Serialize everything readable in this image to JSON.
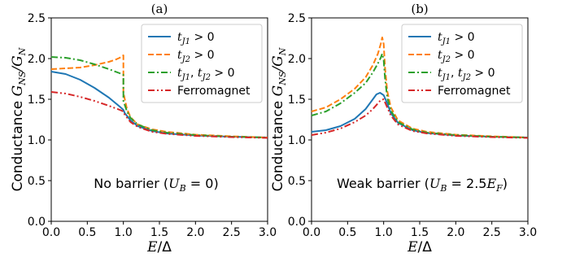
{
  "chart_data": [
    {
      "type": "line",
      "panel_label": "(a)",
      "xlabel": "E/Δ",
      "ylabel": "Conductance G_NS/G_N",
      "ylabel_text": "Conductance ",
      "ylabel_math": "G",
      "ylabel_sub1": "NS",
      "ylabel_slash": "/G",
      "ylabel_sub2": "N",
      "xlim": [
        0,
        3
      ],
      "ylim": [
        0,
        2.5
      ],
      "xticks": [
        "0.0",
        "0.5",
        "1.0",
        "1.5",
        "2.0",
        "2.5",
        "3.0"
      ],
      "yticks": [
        "0.0",
        "0.5",
        "1.0",
        "1.5",
        "2.0",
        "2.5"
      ],
      "annotation": "No barrier (U_B = 0)",
      "annotation_text": "No barrier (",
      "annotation_math": "U",
      "annotation_sub": "B",
      "annotation_rest": " = 0)",
      "legend_position": "top-right",
      "series": [
        {
          "name": "t_J1 > 0",
          "color": "#1f77b4",
          "dash": "solid",
          "x": [
            0,
            0.2,
            0.4,
            0.6,
            0.8,
            0.95,
            1.0,
            1.02,
            1.1,
            1.2,
            1.4,
            1.6,
            2.0,
            2.5,
            3.0
          ],
          "y": [
            1.84,
            1.81,
            1.74,
            1.64,
            1.52,
            1.41,
            1.37,
            1.33,
            1.24,
            1.17,
            1.11,
            1.08,
            1.055,
            1.04,
            1.03
          ]
        },
        {
          "name": "t_J2 > 0",
          "color": "#ff7f0e",
          "dash": "dashed",
          "x": [
            0,
            0.2,
            0.4,
            0.6,
            0.8,
            0.9,
            0.95,
            1.0,
            1.0,
            1.05,
            1.1,
            1.2,
            1.4,
            1.6,
            2.0,
            2.5,
            3.0
          ],
          "y": [
            1.87,
            1.88,
            1.89,
            1.92,
            1.96,
            1.99,
            2.01,
            2.04,
            1.58,
            1.38,
            1.28,
            1.19,
            1.13,
            1.1,
            1.065,
            1.045,
            1.03
          ]
        },
        {
          "name": "t_J1, t_J2 > 0",
          "color": "#2ca02c",
          "dash": "dashdot",
          "x": [
            0,
            0.2,
            0.4,
            0.6,
            0.8,
            0.95,
            1.0,
            1.0,
            1.05,
            1.1,
            1.2,
            1.4,
            1.6,
            2.0,
            2.5,
            3.0
          ],
          "y": [
            2.02,
            2.01,
            1.98,
            1.93,
            1.87,
            1.82,
            1.8,
            1.48,
            1.35,
            1.27,
            1.19,
            1.12,
            1.09,
            1.06,
            1.04,
            1.03
          ]
        },
        {
          "name": "Ferromagnet",
          "color": "#d62728",
          "dash": "dashdotdot",
          "x": [
            0,
            0.2,
            0.4,
            0.6,
            0.8,
            0.95,
            1.0,
            1.02,
            1.1,
            1.2,
            1.4,
            1.6,
            2.0,
            2.5,
            3.0
          ],
          "y": [
            1.59,
            1.57,
            1.53,
            1.48,
            1.42,
            1.37,
            1.35,
            1.31,
            1.22,
            1.16,
            1.1,
            1.075,
            1.05,
            1.035,
            1.025
          ]
        }
      ]
    },
    {
      "type": "line",
      "panel_label": "(b)",
      "xlabel": "E/Δ",
      "ylabel": "Conductance G_NS/G_N",
      "ylabel_text": "Conductance ",
      "ylabel_math": "G",
      "ylabel_sub1": "NS",
      "ylabel_slash": "/G",
      "ylabel_sub2": "N",
      "xlim": [
        0,
        3
      ],
      "ylim": [
        0,
        2.5
      ],
      "xticks": [
        "0.0",
        "0.5",
        "1.0",
        "1.5",
        "2.0",
        "2.5",
        "3.0"
      ],
      "yticks": [
        "0.0",
        "0.5",
        "1.0",
        "1.5",
        "2.0",
        "2.5"
      ],
      "annotation": "Weak barrier (U_B = 2.5E_F)",
      "annotation_text": "Weak barrier (",
      "annotation_math": "U",
      "annotation_sub": "B",
      "annotation_rest": " = 2.5",
      "annotation_math2": "E",
      "annotation_sub2": "F",
      "annotation_close": ")",
      "legend_position": "top-right",
      "series": [
        {
          "name": "t_J1 > 0",
          "color": "#1f77b4",
          "dash": "solid",
          "x": [
            0,
            0.2,
            0.4,
            0.6,
            0.75,
            0.85,
            0.9,
            0.95,
            1.0,
            1.05,
            1.1,
            1.2,
            1.4,
            1.6,
            2.0,
            2.5,
            3.0
          ],
          "y": [
            1.1,
            1.12,
            1.17,
            1.26,
            1.38,
            1.5,
            1.56,
            1.58,
            1.55,
            1.45,
            1.33,
            1.21,
            1.12,
            1.085,
            1.055,
            1.04,
            1.03
          ]
        },
        {
          "name": "t_J2 > 0",
          "color": "#ff7f0e",
          "dash": "dashed",
          "x": [
            0,
            0.2,
            0.4,
            0.6,
            0.75,
            0.85,
            0.92,
            0.96,
            0.98,
            1.0,
            1.02,
            1.05,
            1.1,
            1.2,
            1.4,
            1.6,
            2.0,
            2.5,
            3.0
          ],
          "y": [
            1.35,
            1.4,
            1.5,
            1.63,
            1.77,
            1.92,
            2.06,
            2.18,
            2.26,
            2.18,
            1.88,
            1.6,
            1.4,
            1.24,
            1.14,
            1.1,
            1.065,
            1.045,
            1.03
          ]
        },
        {
          "name": "t_J1, t_J2 > 0",
          "color": "#2ca02c",
          "dash": "dashdot",
          "x": [
            0,
            0.2,
            0.4,
            0.6,
            0.75,
            0.85,
            0.92,
            0.96,
            0.98,
            1.0,
            1.02,
            1.05,
            1.1,
            1.2,
            1.4,
            1.6,
            2.0,
            2.5,
            3.0
          ],
          "y": [
            1.3,
            1.35,
            1.45,
            1.58,
            1.7,
            1.83,
            1.94,
            2.01,
            2.06,
            1.98,
            1.75,
            1.52,
            1.36,
            1.22,
            1.13,
            1.09,
            1.06,
            1.04,
            1.03
          ]
        },
        {
          "name": "Ferromagnet",
          "color": "#d62728",
          "dash": "dashdotdot",
          "x": [
            0,
            0.2,
            0.4,
            0.6,
            0.75,
            0.85,
            0.92,
            0.96,
            1.0,
            1.05,
            1.1,
            1.2,
            1.4,
            1.6,
            2.0,
            2.5,
            3.0
          ],
          "y": [
            1.06,
            1.09,
            1.14,
            1.22,
            1.3,
            1.38,
            1.45,
            1.49,
            1.5,
            1.4,
            1.3,
            1.19,
            1.11,
            1.08,
            1.05,
            1.035,
            1.025
          ]
        }
      ]
    }
  ],
  "legend": [
    {
      "sym": "t",
      "sub": "J1",
      "rest": " > 0",
      "math": true
    },
    {
      "sym": "t",
      "sub": "J2",
      "rest": " > 0",
      "math": true
    },
    {
      "sym": "t",
      "sub": "J1",
      "mid": ", ",
      "sym2": "t",
      "sub2": "J2",
      "rest": " > 0",
      "math": true
    },
    {
      "text": "Ferromagnet",
      "math": false
    }
  ]
}
